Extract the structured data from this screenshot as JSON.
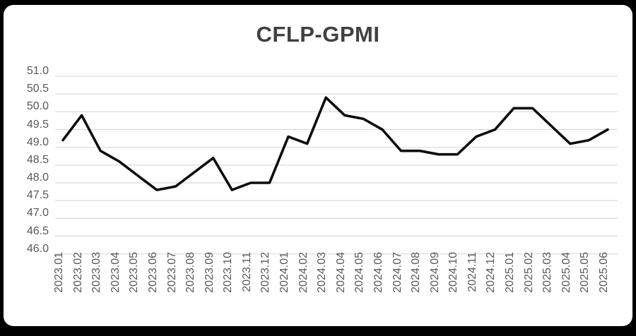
{
  "chart_data": {
    "type": "line",
    "title": "CFLP-GPMI",
    "categories": [
      "2023.01",
      "2023.02",
      "2023.03",
      "2023.04",
      "2023.05",
      "2023.06",
      "2023.07",
      "2023.08",
      "2023.09",
      "2023.10",
      "2023.11",
      "2023.12",
      "2024.01",
      "2024.02",
      "2024.03",
      "2024.04",
      "2024.05",
      "2024.06",
      "2024.07",
      "2024.08",
      "2024.09",
      "2024.10",
      "2024.11",
      "2024.12",
      "2025.01",
      "2025.02",
      "2025.03",
      "2025.04",
      "2025.05",
      "2025.06"
    ],
    "values": [
      49.2,
      49.9,
      48.9,
      48.6,
      48.2,
      47.8,
      47.9,
      48.3,
      48.7,
      47.8,
      48.0,
      48.0,
      49.3,
      49.1,
      50.4,
      49.9,
      49.8,
      49.5,
      48.9,
      48.9,
      48.8,
      48.8,
      49.3,
      49.5,
      50.1,
      50.1,
      49.6,
      49.1,
      49.2,
      49.5
    ],
    "xlabel": "",
    "ylabel": "",
    "ylim": [
      46.0,
      51.0
    ],
    "ytick_step": 0.5,
    "ytick_labels": [
      "51.0",
      "50.5",
      "50.0",
      "49.5",
      "49.0",
      "48.5",
      "48.0",
      "47.5",
      "47.0",
      "46.5",
      "46.0"
    ],
    "grid": "horizontal",
    "legend": "none",
    "colors": {
      "line": "#0d0d0d",
      "gridline": "#d9d9d9",
      "axis_label": "#595959",
      "title": "#404040",
      "panel_background": "#ffffff",
      "outer_background": "#000000"
    }
  }
}
